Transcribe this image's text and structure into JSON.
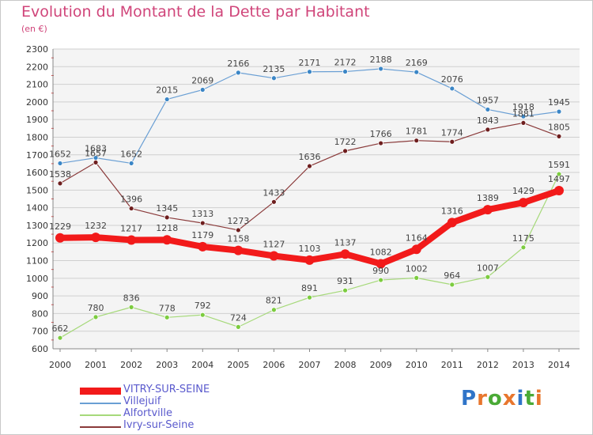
{
  "header": {
    "title": "Evolution du Montant de la Dette par Habitant",
    "subtitle": "(en €)"
  },
  "logo": {
    "text": "Proxiti",
    "letters": [
      "P",
      "r",
      "o",
      "x",
      "i",
      "t",
      "i"
    ],
    "colors": [
      "#2f74c8",
      "#e8762d",
      "#4aaa36",
      "#e8762d",
      "#2f74c8",
      "#4aaa36",
      "#e8762d"
    ]
  },
  "chart_data": {
    "type": "line",
    "title": "Evolution du Montant de la Dette par Habitant",
    "subtitle": "(en €)",
    "x": [
      "2000",
      "2001",
      "2002",
      "2003",
      "2004",
      "2005",
      "2006",
      "2007",
      "2008",
      "2009",
      "2010",
      "2011",
      "2012",
      "2013",
      "2014"
    ],
    "ylim": [
      600,
      2300
    ],
    "yticks": [
      600,
      700,
      800,
      900,
      1000,
      1100,
      1200,
      1300,
      1400,
      1500,
      1600,
      1700,
      1800,
      1900,
      2000,
      2100,
      2200,
      2300
    ],
    "grid": "horizontal",
    "legend_position": "bottom-left",
    "series": [
      {
        "name": "Villejuif",
        "color": "#6a9fd4",
        "marker": "#3b86c6",
        "width": 1.2,
        "r": 3,
        "values": [
          1652,
          1683,
          1652,
          2015,
          2069,
          2166,
          2135,
          2171,
          2172,
          2188,
          2169,
          2076,
          1957,
          1918,
          1945
        ]
      },
      {
        "name": "Ivry-sur-Seine",
        "color": "#8a3a3a",
        "marker": "#6e1e1e",
        "width": 1.2,
        "r": 3,
        "values": [
          1538,
          1657,
          1396,
          1345,
          1313,
          1273,
          1433,
          1636,
          1722,
          1766,
          1781,
          1774,
          1843,
          1881,
          1805
        ]
      },
      {
        "name": "Alfortville",
        "color": "#a6d97a",
        "marker": "#7ccc3f",
        "width": 1.2,
        "r": 3,
        "values": [
          662,
          780,
          836,
          778,
          792,
          724,
          821,
          891,
          931,
          990,
          1002,
          964,
          1007,
          1175,
          1591
        ]
      },
      {
        "name": "VITRY-SUR-SEINE",
        "color": "#f21a1a",
        "marker": "#f21a1a",
        "width": 8,
        "r": 6,
        "values": [
          1229,
          1232,
          1217,
          1218,
          1179,
          1158,
          1127,
          1103,
          1137,
          1082,
          1164,
          1316,
          1389,
          1429,
          1497
        ]
      }
    ],
    "legend": [
      "VITRY-SUR-SEINE",
      "Villejuif",
      "Alfortville",
      "Ivry-sur-Seine"
    ]
  }
}
